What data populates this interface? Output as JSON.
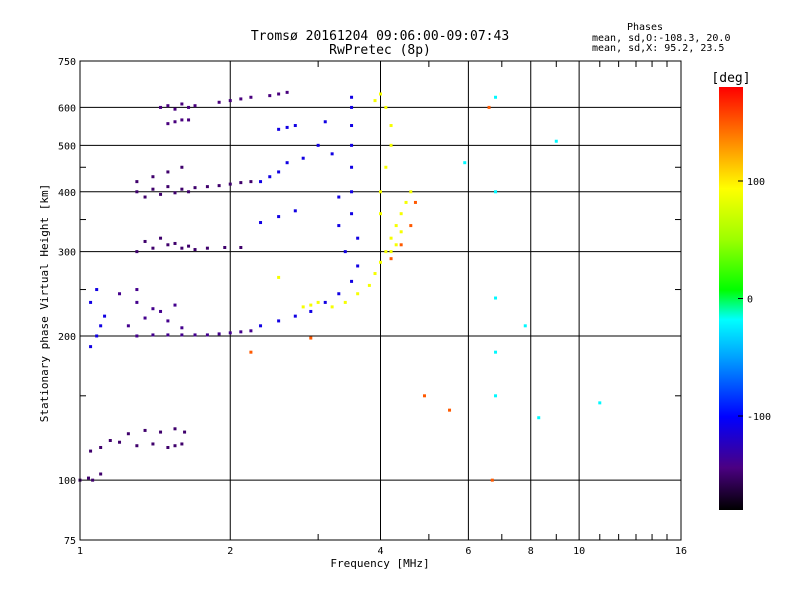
{
  "chart_data": {
    "type": "scatter",
    "title": "Tromsø 20161204 09:06:00-09:07:43",
    "subtitle": "RwPretec (8p)",
    "xlabel": "Frequency [MHz]",
    "ylabel": "Stationary phase Virtual Height [km]",
    "x_scale": "log",
    "y_scale": "log",
    "xlim": [
      1,
      16
    ],
    "ylim": [
      75,
      750
    ],
    "x_ticks": [
      1,
      2,
      4,
      6,
      8,
      10,
      16
    ],
    "x_tick_labels": [
      "1",
      "2",
      "4",
      "6",
      "8",
      "10",
      "16"
    ],
    "y_ticks": [
      75,
      100,
      200,
      300,
      400,
      500,
      600,
      750
    ],
    "y_tick_labels": [
      "75",
      "100",
      "200",
      "300",
      "400",
      "500",
      "600",
      "750"
    ],
    "grid": true,
    "phase_stats": {
      "title": "Phases",
      "line_o": "mean, sd,O:-108.3, 20.0",
      "line_x": "mean, sd,X:  95.2, 23.5"
    },
    "colorbar": {
      "label": "[deg]",
      "range": [
        -180,
        180
      ],
      "ticks": [
        100,
        0,
        -100
      ],
      "tick_labels": [
        "100",
        "0",
        "-100"
      ]
    },
    "series": [
      {
        "phase_mean": -150,
        "points": [
          [
            1.0,
            100
          ],
          [
            1.04,
            101
          ],
          [
            1.06,
            100
          ],
          [
            1.1,
            103
          ],
          [
            1.05,
            115
          ],
          [
            1.1,
            117
          ],
          [
            1.2,
            120
          ],
          [
            1.3,
            118
          ],
          [
            1.4,
            119
          ],
          [
            1.5,
            117
          ],
          [
            1.55,
            118
          ],
          [
            1.6,
            119
          ],
          [
            1.15,
            121
          ],
          [
            1.25,
            125
          ],
          [
            1.35,
            127
          ],
          [
            1.45,
            126
          ],
          [
            1.55,
            128
          ],
          [
            1.62,
            126
          ]
        ]
      },
      {
        "phase_mean": -140,
        "points": [
          [
            1.3,
            200
          ],
          [
            1.4,
            201
          ],
          [
            1.5,
            201
          ],
          [
            1.6,
            201
          ],
          [
            1.7,
            201
          ],
          [
            1.8,
            201
          ],
          [
            1.9,
            202
          ],
          [
            2.0,
            203
          ],
          [
            2.1,
            204
          ],
          [
            2.2,
            205
          ],
          [
            1.25,
            210
          ],
          [
            1.35,
            218
          ],
          [
            1.45,
            225
          ],
          [
            1.55,
            232
          ],
          [
            1.3,
            235
          ],
          [
            1.4,
            228
          ],
          [
            1.5,
            215
          ],
          [
            1.6,
            208
          ],
          [
            1.2,
            245
          ],
          [
            1.3,
            250
          ]
        ]
      },
      {
        "phase_mean": -150,
        "points": [
          [
            1.3,
            300
          ],
          [
            1.4,
            305
          ],
          [
            1.5,
            310
          ],
          [
            1.6,
            305
          ],
          [
            1.7,
            303
          ],
          [
            1.8,
            305
          ],
          [
            1.95,
            306
          ],
          [
            2.1,
            306
          ],
          [
            1.35,
            315
          ],
          [
            1.45,
            320
          ],
          [
            1.55,
            312
          ],
          [
            1.65,
            308
          ]
        ]
      },
      {
        "phase_mean": -150,
        "points": [
          [
            1.3,
            400
          ],
          [
            1.4,
            405
          ],
          [
            1.5,
            410
          ],
          [
            1.6,
            405
          ],
          [
            1.7,
            408
          ],
          [
            1.8,
            410
          ],
          [
            1.9,
            412
          ],
          [
            2.0,
            415
          ],
          [
            2.1,
            418
          ],
          [
            2.2,
            420
          ],
          [
            1.35,
            390
          ],
          [
            1.45,
            395
          ],
          [
            1.55,
            398
          ],
          [
            1.65,
            400
          ],
          [
            1.3,
            420
          ],
          [
            1.4,
            430
          ],
          [
            1.5,
            440
          ],
          [
            1.6,
            450
          ]
        ]
      },
      {
        "phase_mean": -145,
        "points": [
          [
            1.45,
            600
          ],
          [
            1.5,
            605
          ],
          [
            1.55,
            595
          ],
          [
            1.6,
            610
          ],
          [
            1.65,
            600
          ],
          [
            1.7,
            605
          ],
          [
            1.5,
            555
          ],
          [
            1.55,
            560
          ],
          [
            1.6,
            565
          ],
          [
            1.65,
            565
          ],
          [
            1.9,
            615
          ],
          [
            2.0,
            620
          ],
          [
            2.1,
            625
          ],
          [
            2.2,
            630
          ],
          [
            2.4,
            635
          ],
          [
            2.5,
            640
          ],
          [
            2.6,
            645
          ]
        ]
      },
      {
        "phase_mean": -110,
        "points": [
          [
            1.05,
            190
          ],
          [
            1.08,
            200
          ],
          [
            1.1,
            210
          ],
          [
            1.12,
            220
          ],
          [
            1.05,
            235
          ],
          [
            1.08,
            250
          ],
          [
            2.3,
            210
          ],
          [
            2.5,
            215
          ],
          [
            2.7,
            220
          ],
          [
            2.9,
            225
          ],
          [
            3.1,
            235
          ],
          [
            3.3,
            245
          ],
          [
            3.5,
            260
          ],
          [
            3.6,
            280
          ],
          [
            3.6,
            320
          ],
          [
            3.5,
            360
          ],
          [
            3.5,
            400
          ],
          [
            3.5,
            450
          ],
          [
            3.5,
            500
          ],
          [
            3.5,
            550
          ],
          [
            3.5,
            600
          ],
          [
            3.5,
            630
          ],
          [
            3.3,
            390
          ],
          [
            3.3,
            340
          ],
          [
            3.4,
            300
          ],
          [
            3.2,
            480
          ],
          [
            3.0,
            500
          ],
          [
            2.8,
            470
          ],
          [
            2.6,
            460
          ],
          [
            2.5,
            440
          ],
          [
            2.4,
            430
          ],
          [
            2.3,
            420
          ],
          [
            2.5,
            540
          ],
          [
            2.6,
            545
          ],
          [
            2.7,
            550
          ],
          [
            3.1,
            560
          ],
          [
            2.3,
            345
          ],
          [
            2.5,
            355
          ],
          [
            2.7,
            365
          ]
        ]
      },
      {
        "phase_mean": 90,
        "points": [
          [
            3.0,
            235
          ],
          [
            3.2,
            230
          ],
          [
            3.4,
            235
          ],
          [
            3.6,
            245
          ],
          [
            3.8,
            255
          ],
          [
            3.9,
            270
          ],
          [
            4.0,
            285
          ],
          [
            4.1,
            300
          ],
          [
            4.2,
            320
          ],
          [
            4.3,
            340
          ],
          [
            4.4,
            360
          ],
          [
            4.5,
            380
          ],
          [
            4.6,
            400
          ],
          [
            4.4,
            330
          ],
          [
            4.3,
            310
          ],
          [
            4.2,
            300
          ],
          [
            4.0,
            360
          ],
          [
            4.0,
            400
          ],
          [
            4.1,
            450
          ],
          [
            4.2,
            500
          ],
          [
            4.2,
            550
          ],
          [
            4.1,
            600
          ],
          [
            4.0,
            640
          ],
          [
            3.9,
            620
          ],
          [
            2.8,
            230
          ],
          [
            2.9,
            232
          ],
          [
            2.5,
            265
          ]
        ]
      },
      {
        "phase_mean": 150,
        "points": [
          [
            4.2,
            290
          ],
          [
            4.4,
            310
          ],
          [
            4.6,
            340
          ],
          [
            4.7,
            380
          ],
          [
            4.9,
            150
          ],
          [
            5.5,
            140
          ],
          [
            6.7,
            100
          ],
          [
            6.6,
            600
          ],
          [
            2.2,
            185
          ],
          [
            2.9,
            198
          ]
        ]
      },
      {
        "phase_mean": -20,
        "points": [
          [
            6.8,
            630
          ],
          [
            6.8,
            400
          ],
          [
            6.8,
            240
          ],
          [
            7.8,
            210
          ],
          [
            9.0,
            510
          ],
          [
            6.8,
            150
          ],
          [
            5.9,
            460
          ],
          [
            8.3,
            135
          ],
          [
            11.0,
            145
          ],
          [
            6.8,
            185
          ]
        ]
      }
    ]
  }
}
